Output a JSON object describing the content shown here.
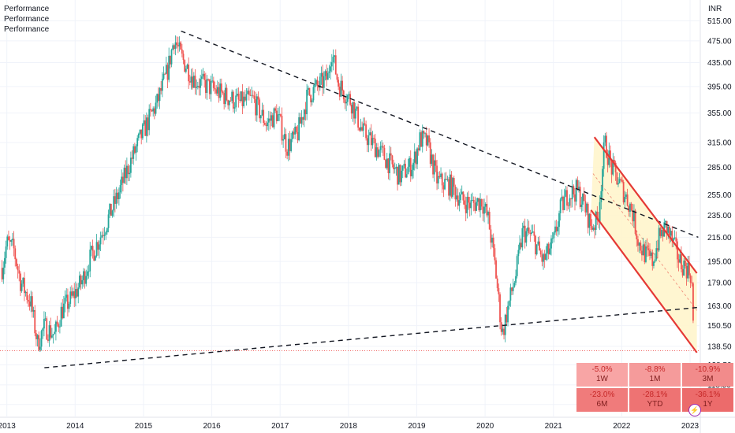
{
  "legend": [
    "Performance",
    "Performance",
    "Performance"
  ],
  "currency": "INR",
  "colors": {
    "up": "#26a69a",
    "down": "#ef5350",
    "channel": "#e53935",
    "channel_fill": "#fff5cc",
    "trend": "#131722",
    "last_price": "#ef5350"
  },
  "performance": [
    {
      "value": "-5.0%",
      "period": "1W",
      "shade": "#f8a5a5"
    },
    {
      "value": "-8.8%",
      "period": "1M",
      "shade": "#f59b9b"
    },
    {
      "value": "-10.9%",
      "period": "3M",
      "shade": "#f28b8b"
    },
    {
      "value": "-23.0%",
      "period": "6M",
      "shade": "#f07b7b"
    },
    {
      "value": "-28.1%",
      "period": "YTD",
      "shade": "#ee7373"
    },
    {
      "value": "-36.1%",
      "period": "1Y",
      "shade": "#ec6b6b"
    }
  ],
  "chart_data": {
    "type": "candlestick",
    "x_ticks": [
      "2013",
      "2014",
      "2015",
      "2016",
      "2017",
      "2018",
      "2019",
      "2020",
      "2021",
      "2022",
      "2023"
    ],
    "y_ticks": [
      "515.00",
      "475.00",
      "435.00",
      "395.00",
      "355.00",
      "315.00",
      "285.00",
      "255.00",
      "235.00",
      "215.00",
      "195.00",
      "179.00",
      "163.00",
      "150.50",
      "138.50",
      "128.50",
      "118.50",
      "109.50"
    ],
    "y_scale": "log",
    "xlim": [
      2012.9,
      2023.15
    ],
    "ylim": [
      104,
      560
    ],
    "last_price": 136,
    "price_path": [
      [
        2012.93,
        190
      ],
      [
        2013.0,
        210
      ],
      [
        2013.1,
        205
      ],
      [
        2013.2,
        180
      ],
      [
        2013.35,
        165
      ],
      [
        2013.45,
        140
      ],
      [
        2013.55,
        150
      ],
      [
        2013.7,
        145
      ],
      [
        2013.8,
        160
      ],
      [
        2013.95,
        168
      ],
      [
        2014.1,
        180
      ],
      [
        2014.2,
        195
      ],
      [
        2014.4,
        220
      ],
      [
        2014.6,
        250
      ],
      [
        2014.8,
        290
      ],
      [
        2014.95,
        320
      ],
      [
        2015.05,
        340
      ],
      [
        2015.2,
        370
      ],
      [
        2015.35,
        420
      ],
      [
        2015.45,
        480
      ],
      [
        2015.55,
        445
      ],
      [
        2015.75,
        405
      ],
      [
        2015.95,
        395
      ],
      [
        2016.2,
        380
      ],
      [
        2016.4,
        370
      ],
      [
        2016.6,
        375
      ],
      [
        2016.8,
        340
      ],
      [
        2016.95,
        355
      ],
      [
        2017.1,
        310
      ],
      [
        2017.25,
        325
      ],
      [
        2017.4,
        380
      ],
      [
        2017.55,
        395
      ],
      [
        2017.7,
        410
      ],
      [
        2017.75,
        460
      ],
      [
        2017.85,
        400
      ],
      [
        2018.05,
        370
      ],
      [
        2018.2,
        330
      ],
      [
        2018.5,
        300
      ],
      [
        2018.75,
        275
      ],
      [
        2018.95,
        290
      ],
      [
        2019.05,
        320
      ],
      [
        2019.15,
        315
      ],
      [
        2019.3,
        270
      ],
      [
        2019.5,
        265
      ],
      [
        2019.65,
        250
      ],
      [
        2019.8,
        245
      ],
      [
        2019.95,
        250
      ],
      [
        2020.05,
        230
      ],
      [
        2020.15,
        190
      ],
      [
        2020.25,
        145
      ],
      [
        2020.35,
        165
      ],
      [
        2020.45,
        185
      ],
      [
        2020.55,
        220
      ],
      [
        2020.7,
        215
      ],
      [
        2020.85,
        195
      ],
      [
        2021.0,
        210
      ],
      [
        2021.1,
        240
      ],
      [
        2021.2,
        255
      ],
      [
        2021.35,
        260
      ],
      [
        2021.45,
        245
      ],
      [
        2021.55,
        225
      ],
      [
        2021.65,
        230
      ],
      [
        2021.75,
        315
      ],
      [
        2021.85,
        285
      ],
      [
        2021.95,
        270
      ],
      [
        2022.05,
        255
      ],
      [
        2022.15,
        240
      ],
      [
        2022.25,
        210
      ],
      [
        2022.35,
        200
      ],
      [
        2022.45,
        195
      ],
      [
        2022.55,
        215
      ],
      [
        2022.65,
        225
      ],
      [
        2022.75,
        210
      ],
      [
        2022.85,
        195
      ],
      [
        2022.95,
        190
      ],
      [
        2023.02,
        185
      ],
      [
        2023.06,
        136
      ]
    ],
    "trendlines": [
      {
        "name": "upper-trendline",
        "style": "dashed",
        "from": [
          2015.55,
          494
        ],
        "to": [
          2023.12,
          215
        ]
      },
      {
        "name": "lower-trendline",
        "style": "dashed",
        "from": [
          2013.55,
          127
        ],
        "to": [
          2023.12,
          162
        ]
      }
    ],
    "channel": {
      "upper": {
        "from": [
          2021.6,
          322
        ],
        "to": [
          2023.1,
          186
        ]
      },
      "lower": {
        "from": [
          2021.55,
          240
        ],
        "to": [
          2023.1,
          135
        ]
      },
      "mid": {
        "from": [
          2021.58,
          278
        ],
        "to": [
          2023.1,
          160
        ]
      }
    }
  }
}
